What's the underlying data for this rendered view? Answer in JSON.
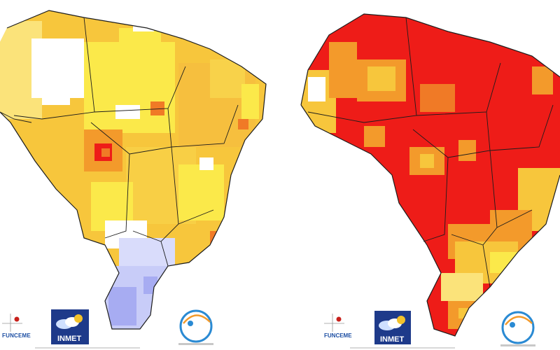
{
  "panels": [
    {
      "name": "left",
      "logos": {
        "funceme": "FUNCEME",
        "inmet": "INMET"
      }
    },
    {
      "name": "right",
      "logos": {
        "funceme": "FUNCEME",
        "inmet": "INMET"
      }
    }
  ],
  "colors": {
    "white": "#ffffff",
    "light_yellow": "#fbe94a",
    "gold": "#f7c63c",
    "orange": "#f39a2b",
    "dark_orange": "#f07a26",
    "red": "#ee1c18",
    "light_blue": "#c8ccf8",
    "periwinkle": "#a7acf2",
    "border": "#1c1c1c",
    "inmet_blue": "#1e3a8a"
  },
  "icons": [
    "funceme-logo-icon",
    "inmet-logo-icon",
    "cptec-logo-icon"
  ]
}
